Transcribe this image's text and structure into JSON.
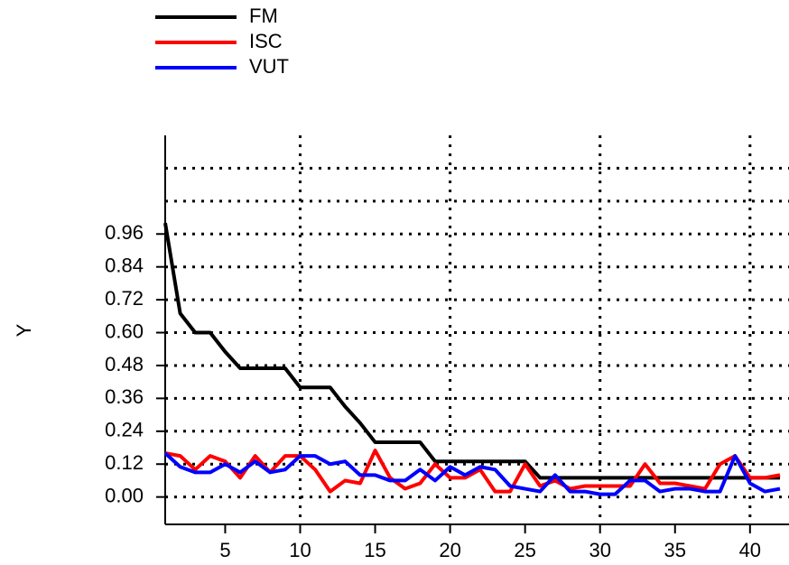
{
  "chart_data": {
    "type": "line",
    "ylabel": "Y",
    "x": [
      1,
      2,
      3,
      4,
      5,
      6,
      7,
      8,
      9,
      10,
      11,
      12,
      13,
      14,
      15,
      16,
      17,
      18,
      19,
      20,
      21,
      22,
      23,
      24,
      25,
      26,
      27,
      28,
      29,
      30,
      31,
      32,
      33,
      34,
      35,
      36,
      37,
      38,
      39,
      40,
      41,
      42
    ],
    "series": [
      {
        "name": "FM",
        "color": "#000000",
        "values": [
          1.0,
          0.67,
          0.6,
          0.6,
          0.53,
          0.47,
          0.47,
          0.47,
          0.47,
          0.4,
          0.4,
          0.4,
          0.33,
          0.27,
          0.2,
          0.2,
          0.2,
          0.2,
          0.13,
          0.13,
          0.13,
          0.13,
          0.13,
          0.13,
          0.13,
          0.07,
          0.07,
          0.07,
          0.07,
          0.07,
          0.07,
          0.07,
          0.07,
          0.07,
          0.07,
          0.07,
          0.07,
          0.07,
          0.07,
          0.07,
          0.07,
          0.07
        ]
      },
      {
        "name": "ISC",
        "color": "#ff0000",
        "values": [
          0.16,
          0.15,
          0.1,
          0.15,
          0.13,
          0.07,
          0.15,
          0.09,
          0.15,
          0.15,
          0.1,
          0.02,
          0.06,
          0.05,
          0.17,
          0.07,
          0.03,
          0.05,
          0.12,
          0.07,
          0.07,
          0.1,
          0.02,
          0.02,
          0.12,
          0.04,
          0.06,
          0.03,
          0.04,
          0.04,
          0.04,
          0.04,
          0.12,
          0.05,
          0.05,
          0.04,
          0.03,
          0.12,
          0.15,
          0.07,
          0.07,
          0.08
        ]
      },
      {
        "name": "VUT",
        "color": "#0000ff",
        "values": [
          0.16,
          0.11,
          0.09,
          0.09,
          0.12,
          0.09,
          0.13,
          0.09,
          0.1,
          0.15,
          0.15,
          0.12,
          0.13,
          0.08,
          0.08,
          0.06,
          0.06,
          0.1,
          0.06,
          0.11,
          0.08,
          0.11,
          0.1,
          0.04,
          0.03,
          0.02,
          0.08,
          0.02,
          0.02,
          0.01,
          0.01,
          0.06,
          0.06,
          0.02,
          0.03,
          0.03,
          0.02,
          0.02,
          0.15,
          0.05,
          0.02,
          0.03
        ]
      }
    ],
    "xlim": [
      1,
      42.6
    ],
    "ylim": [
      -0.1,
      1.32
    ],
    "xticks": [
      5,
      10,
      15,
      20,
      25,
      30,
      35,
      40
    ],
    "yticks": [
      {
        "value": 0,
        "label": "0.00"
      },
      0.12,
      0.24,
      0.36,
      0.48,
      {
        "value": 0.6,
        "label": "0.60"
      },
      0.72,
      0.84,
      0.96
    ],
    "xgrid": [
      10,
      20,
      30,
      40
    ],
    "ygrid": [
      0,
      0.12,
      0.24,
      0.36,
      0.48,
      0.6,
      0.72,
      0.84,
      0.96,
      1.08,
      1.2
    ],
    "legend": "top-left"
  }
}
